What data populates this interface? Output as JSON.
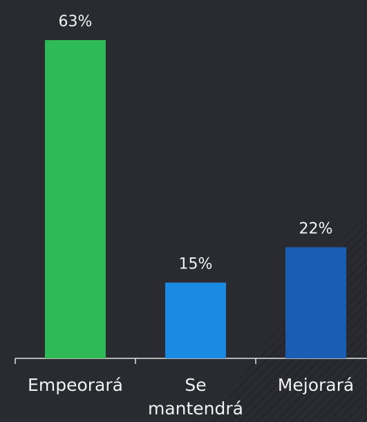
{
  "chart_data": {
    "type": "bar",
    "categories": [
      "Empeorará",
      "Se mantendrá",
      "Mejorará"
    ],
    "values": [
      63,
      15,
      22
    ],
    "value_labels": [
      "63%",
      "15%",
      "22%"
    ],
    "colors": [
      "#2dba57",
      "#1b8ae3",
      "#1a5db5"
    ]
  }
}
